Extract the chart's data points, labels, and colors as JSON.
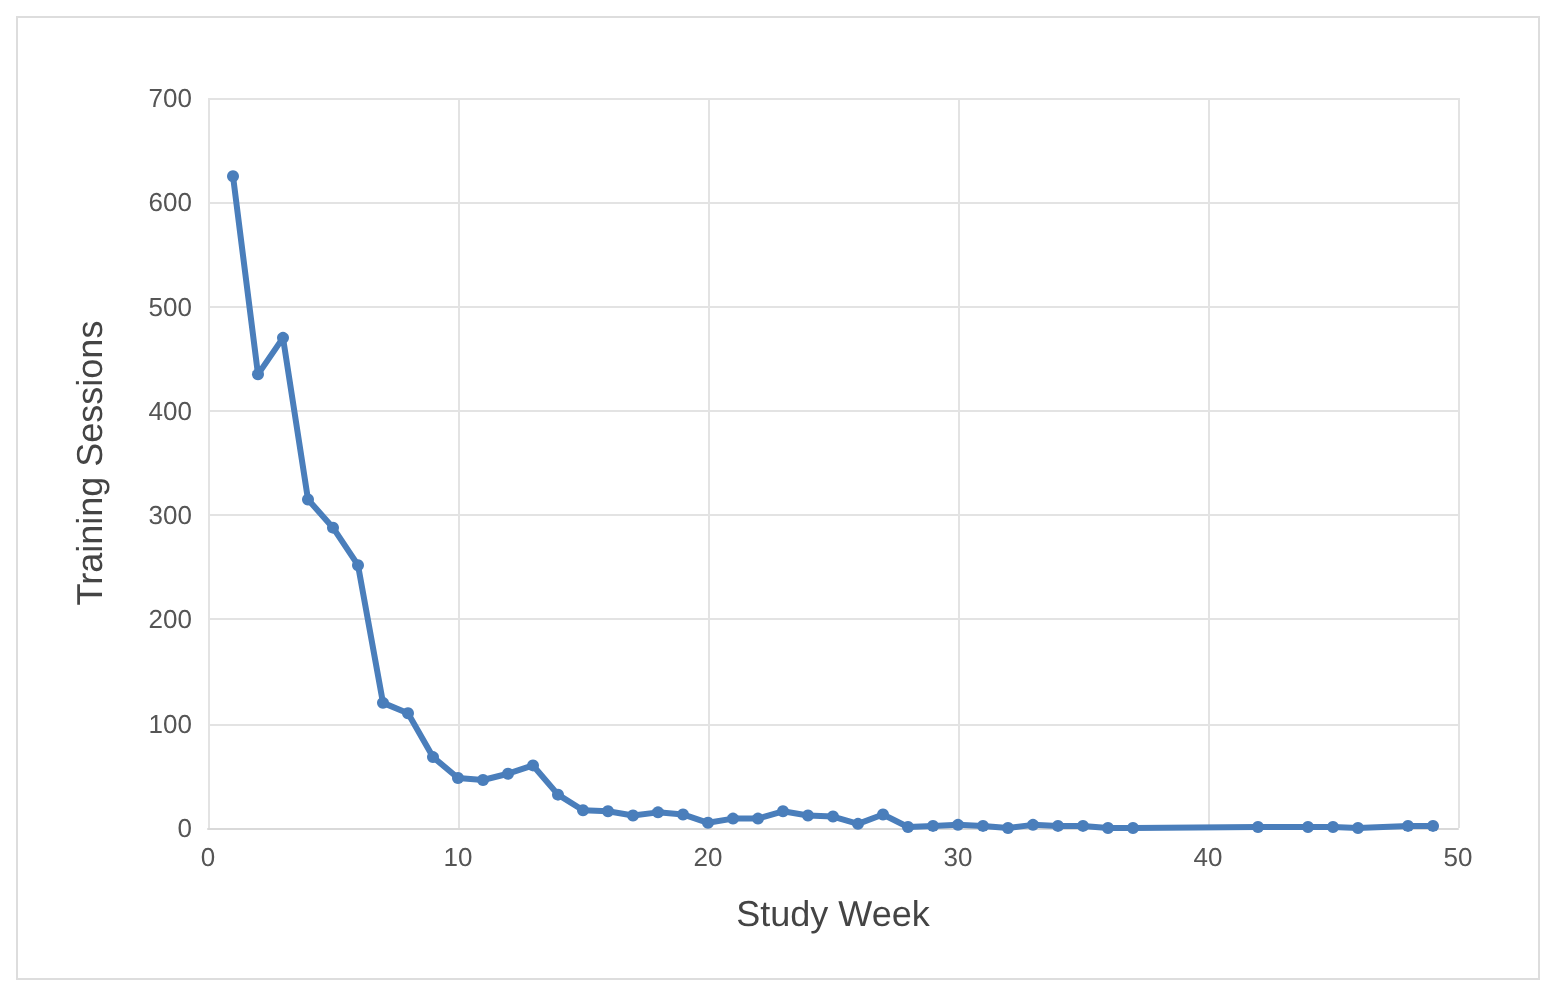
{
  "chart_data": {
    "type": "line",
    "xlabel": "Study Week",
    "ylabel": "Training Sessions",
    "x": [
      1,
      2,
      3,
      4,
      5,
      6,
      7,
      8,
      9,
      10,
      11,
      12,
      13,
      14,
      15,
      16,
      17,
      18,
      19,
      20,
      21,
      22,
      23,
      24,
      25,
      26,
      27,
      28,
      29,
      30,
      31,
      32,
      33,
      34,
      35,
      36,
      37,
      42,
      44,
      45,
      46,
      48,
      49
    ],
    "series": [
      {
        "color": "#4a7ebb",
        "values": [
          625,
          435,
          470,
          315,
          288,
          252,
          120,
          110,
          68,
          48,
          46,
          52,
          60,
          32,
          17,
          16,
          12,
          15,
          13,
          5,
          9,
          9,
          16,
          12,
          11,
          4,
          13,
          1,
          2,
          3,
          2,
          0,
          3,
          2,
          2,
          0,
          0,
          1,
          1,
          1,
          0,
          2,
          2
        ]
      }
    ],
    "xlim": [
      0,
      50
    ],
    "xticks": [
      0,
      10,
      20,
      30,
      40,
      50
    ],
    "ylim": [
      0,
      700
    ],
    "yticks": [
      0,
      100,
      200,
      300,
      400,
      500,
      600,
      700
    ],
    "grid": true,
    "marker": "circle",
    "line_style": "solid"
  }
}
